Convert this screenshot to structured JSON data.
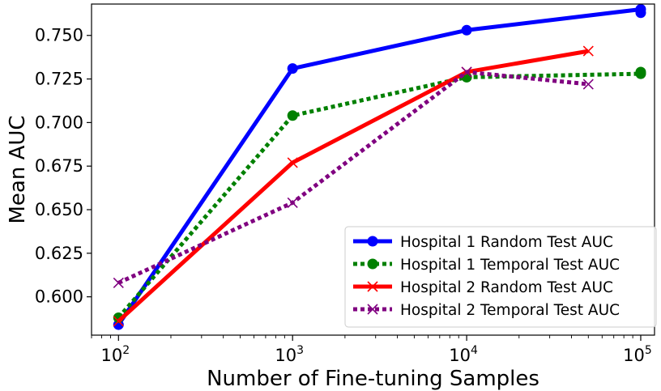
{
  "chart_data": {
    "type": "line",
    "title": "",
    "xlabel": "Number of Fine-tuning Samples",
    "ylabel": "Mean AUC",
    "xscale": "log",
    "xlim": [
      70,
      120000
    ],
    "ylim": [
      0.578,
      0.768
    ],
    "x_ticks": [
      {
        "value": 100,
        "base": "10",
        "exp": "2"
      },
      {
        "value": 1000,
        "base": "10",
        "exp": "3"
      },
      {
        "value": 10000,
        "base": "10",
        "exp": "4"
      },
      {
        "value": 100000,
        "base": "10",
        "exp": "5"
      }
    ],
    "y_ticks": [
      0.6,
      0.625,
      0.65,
      0.675,
      0.7,
      0.725,
      0.75
    ],
    "y_tick_labels": [
      "0.600",
      "0.625",
      "0.650",
      "0.675",
      "0.700",
      "0.725",
      "0.750"
    ],
    "grid": false,
    "legend_position": "lower-right",
    "series": [
      {
        "name": "Hospital 1 Random Test AUC",
        "color": "#0000ff",
        "style": "solid",
        "marker": "circle",
        "points": [
          [
            100,
            0.584
          ],
          [
            1000,
            0.731
          ],
          [
            10000,
            0.753
          ],
          [
            100000,
            0.765
          ],
          [
            100000,
            0.763
          ]
        ]
      },
      {
        "name": "Hospital 1 Temporal Test AUC",
        "color": "#008000",
        "style": "dotted",
        "marker": "circle",
        "points": [
          [
            100,
            0.588
          ],
          [
            1000,
            0.704
          ],
          [
            10000,
            0.726
          ],
          [
            100000,
            0.728
          ],
          [
            100000,
            0.729
          ]
        ]
      },
      {
        "name": "Hospital 2 Random Test AUC",
        "color": "#ff0000",
        "style": "solid",
        "marker": "x",
        "points": [
          [
            100,
            0.586
          ],
          [
            1000,
            0.677
          ],
          [
            10000,
            0.729
          ],
          [
            50000,
            0.741
          ]
        ]
      },
      {
        "name": "Hospital 2 Temporal Test AUC",
        "color": "#800080",
        "style": "dotted",
        "marker": "x",
        "points": [
          [
            100,
            0.608
          ],
          [
            1000,
            0.654
          ],
          [
            10000,
            0.729
          ],
          [
            50000,
            0.722
          ]
        ]
      }
    ]
  }
}
